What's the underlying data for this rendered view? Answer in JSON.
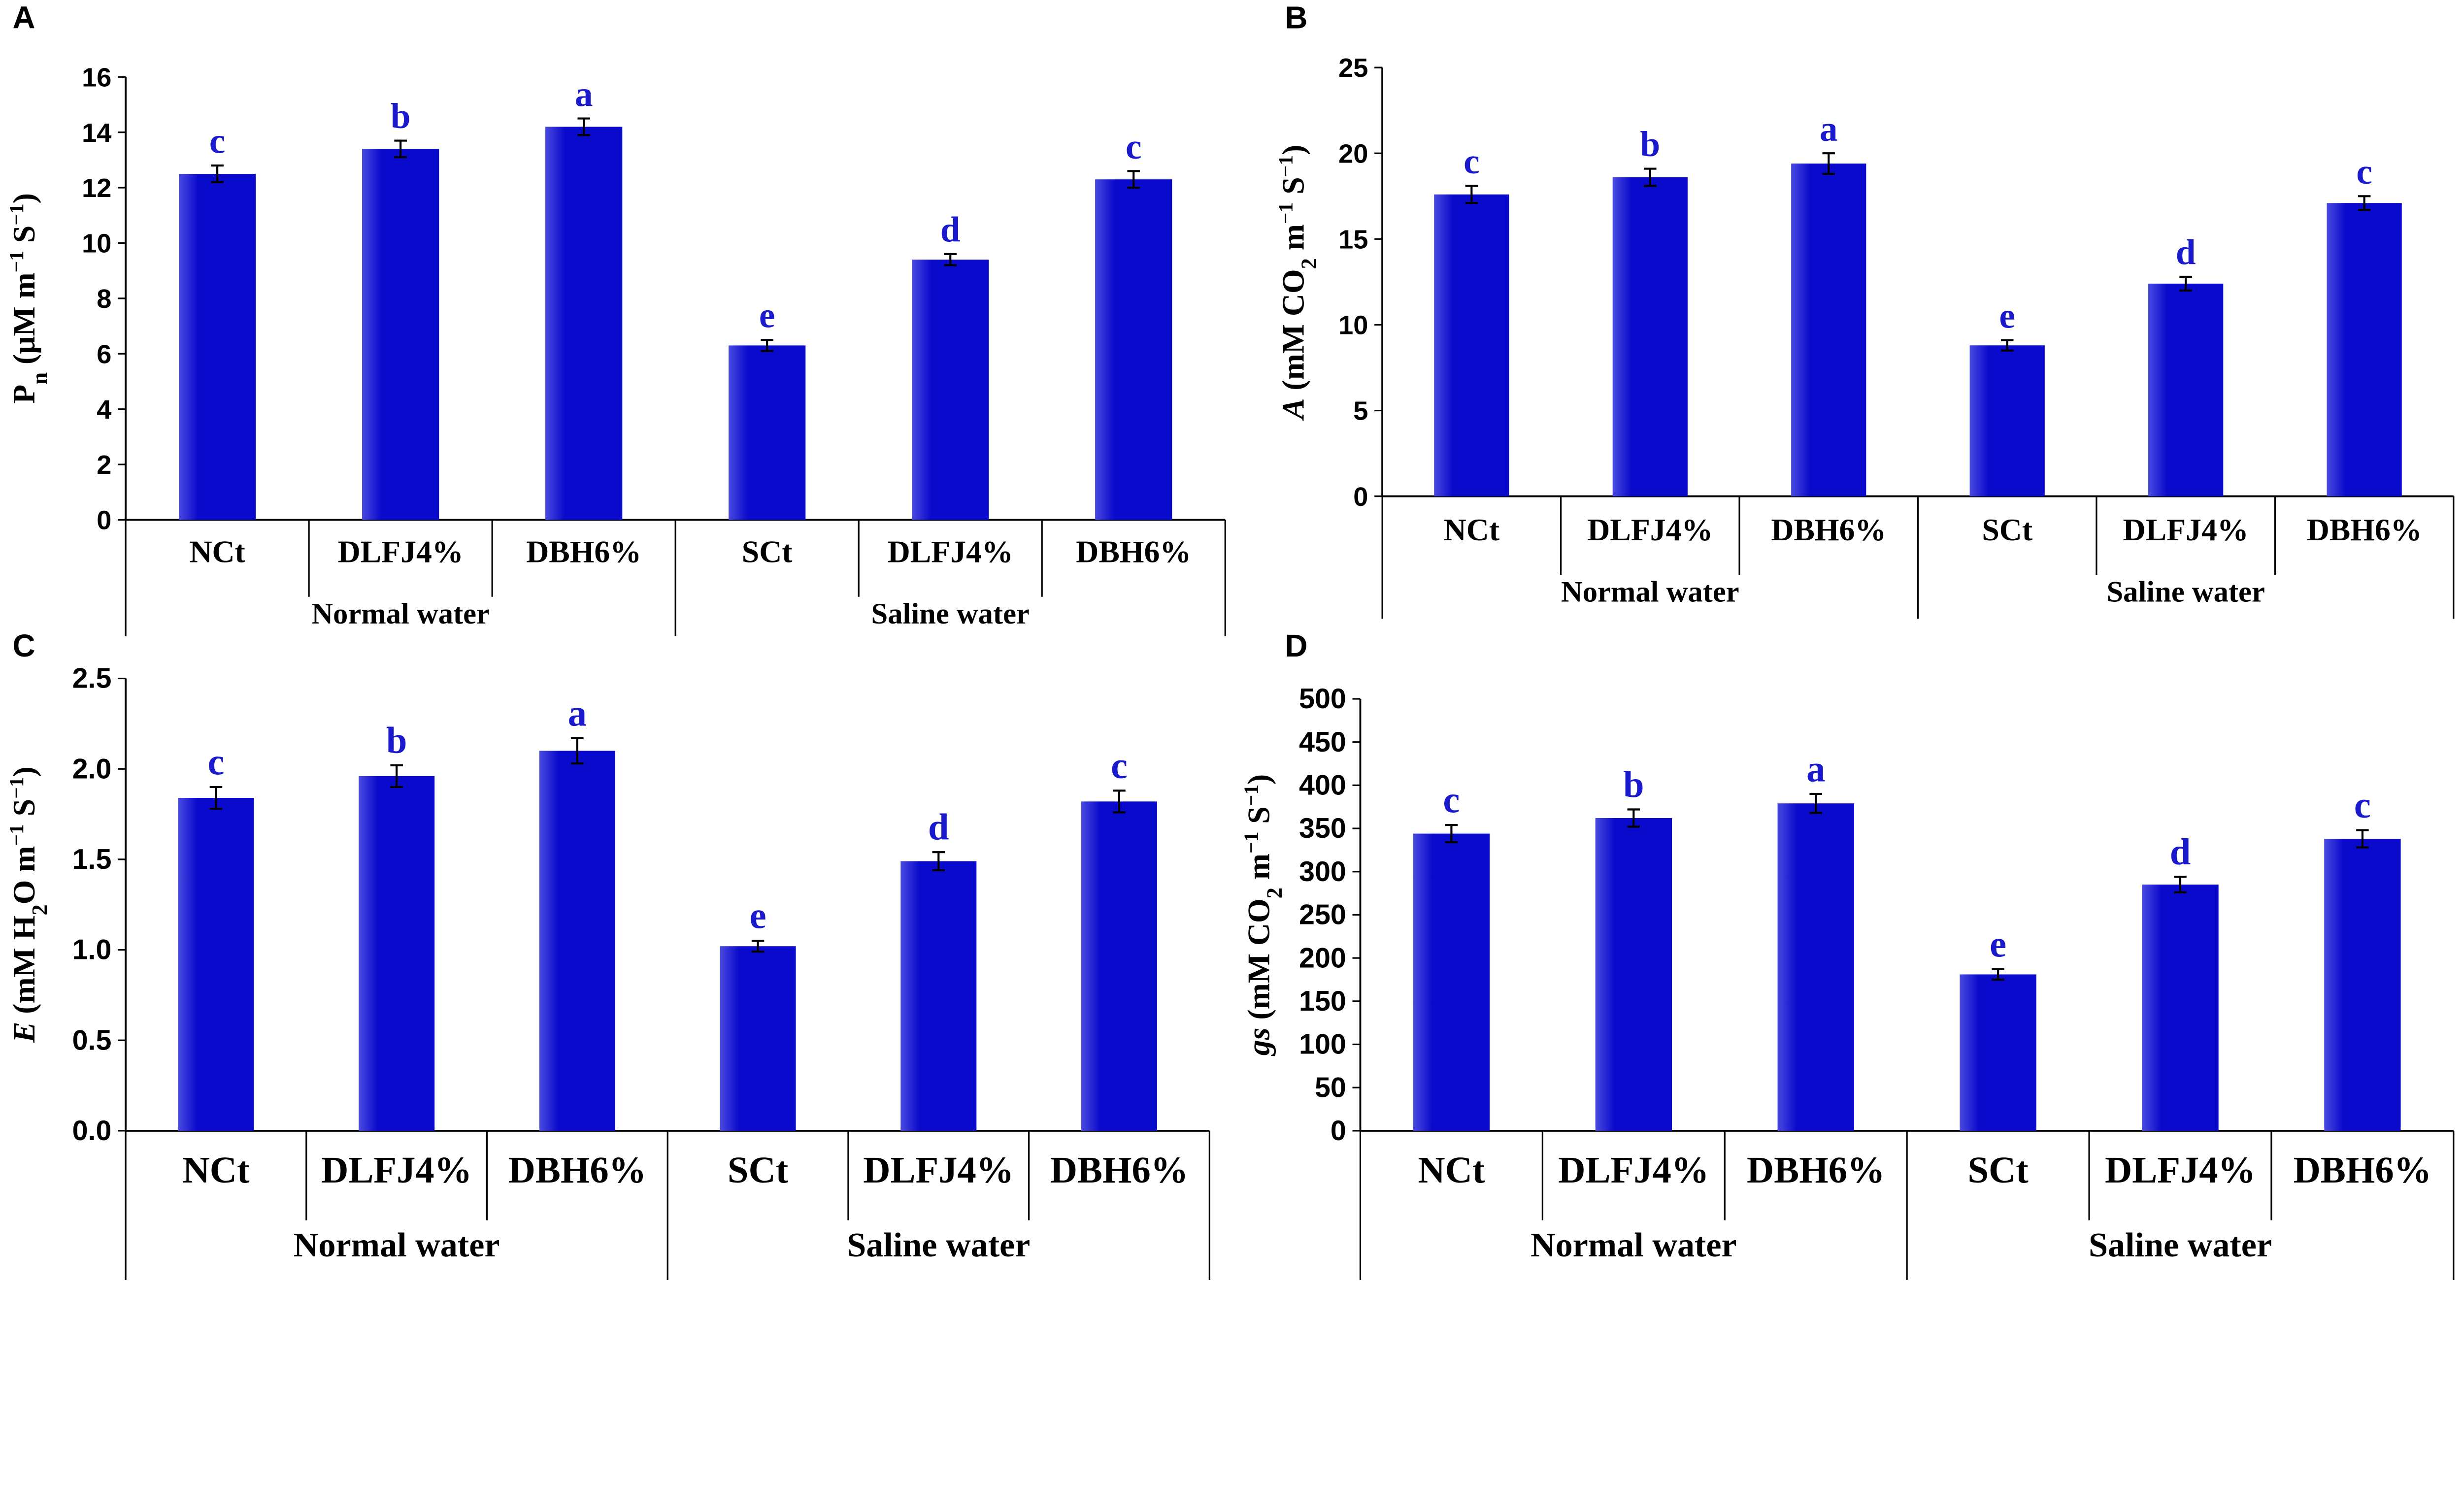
{
  "bar_color": "#0a0acc",
  "letter_color": "#1a1acc",
  "chart_data": [
    {
      "panel": "A",
      "type": "bar",
      "categories": [
        "NCt",
        "DLFJ4%",
        "DBH6%",
        "SCt",
        "DLFJ4%",
        "DBH6%"
      ],
      "groups": [
        "Normal water",
        "Saline water"
      ],
      "values": [
        12.5,
        13.4,
        14.2,
        6.3,
        9.4,
        12.3
      ],
      "errors": [
        0.3,
        0.3,
        0.3,
        0.2,
        0.2,
        0.3
      ],
      "letters": [
        "c",
        "b",
        "a",
        "e",
        "d",
        "c"
      ],
      "ylabel_parts": [
        {
          "t": "P"
        },
        {
          "t": "n",
          "s": "sub"
        },
        {
          "t": " (μM m"
        },
        {
          "t": "−1",
          "s": "sup"
        },
        {
          "t": " S"
        },
        {
          "t": "−1",
          "s": "sup"
        },
        {
          "t": ")"
        }
      ],
      "ylim": [
        0,
        16
      ],
      "yticks": [
        "0",
        "2",
        "4",
        "6",
        "8",
        "10",
        "12",
        "14",
        "16"
      ]
    },
    {
      "panel": "B",
      "type": "bar",
      "categories": [
        "NCt",
        "DLFJ4%",
        "DBH6%",
        "SCt",
        "DLFJ4%",
        "DBH6%"
      ],
      "groups": [
        "Normal water",
        "Saline water"
      ],
      "values": [
        17.6,
        18.6,
        19.4,
        8.8,
        12.4,
        17.1
      ],
      "errors": [
        0.5,
        0.5,
        0.6,
        0.3,
        0.4,
        0.4
      ],
      "letters": [
        "c",
        "b",
        "a",
        "e",
        "d",
        "c"
      ],
      "ylabel_parts": [
        {
          "t": "A",
          "i": true
        },
        {
          "t": " (mM CO"
        },
        {
          "t": "2",
          "s": "sub"
        },
        {
          "t": " m"
        },
        {
          "t": "−1",
          "s": "sup"
        },
        {
          "t": " S"
        },
        {
          "t": "−1",
          "s": "sup"
        },
        {
          "t": ")"
        }
      ],
      "ylim": [
        0,
        25
      ],
      "yticks": [
        "0",
        "5",
        "10",
        "15",
        "20",
        "25"
      ]
    },
    {
      "panel": "C",
      "type": "bar",
      "categories": [
        "NCt",
        "DLFJ4%",
        "DBH6%",
        "SCt",
        "DLFJ4%",
        "DBH6%"
      ],
      "groups": [
        "Normal water",
        "Saline water"
      ],
      "values": [
        1.84,
        1.96,
        2.1,
        1.02,
        1.49,
        1.82
      ],
      "errors": [
        0.06,
        0.06,
        0.07,
        0.03,
        0.05,
        0.06
      ],
      "letters": [
        "c",
        "b",
        "a",
        "e",
        "d",
        "c"
      ],
      "ylabel_parts": [
        {
          "t": "E",
          "i": true
        },
        {
          "t": " (mM H"
        },
        {
          "t": "2",
          "s": "sub"
        },
        {
          "t": "O m"
        },
        {
          "t": "−1",
          "s": "sup"
        },
        {
          "t": " S"
        },
        {
          "t": "−1",
          "s": "sup"
        },
        {
          "t": ")"
        }
      ],
      "ylim": [
        0,
        2.5
      ],
      "yticks": [
        "0.0",
        "0.5",
        "1.0",
        "1.5",
        "2.0",
        "2.5"
      ]
    },
    {
      "panel": "D",
      "type": "bar",
      "categories": [
        "NCt",
        "DLFJ4%",
        "DBH6%",
        "SCt",
        "DLFJ4%",
        "DBH6%"
      ],
      "groups": [
        "Normal water",
        "Saline water"
      ],
      "values": [
        344,
        362,
        379,
        181,
        285,
        338
      ],
      "errors": [
        10,
        10,
        11,
        6,
        9,
        10
      ],
      "letters": [
        "c",
        "b",
        "a",
        "e",
        "d",
        "c"
      ],
      "ylabel_parts": [
        {
          "t": "gs",
          "i": true
        },
        {
          "t": " (mM CO"
        },
        {
          "t": "2",
          "s": "sub"
        },
        {
          "t": " m"
        },
        {
          "t": "−1",
          "s": "sup"
        },
        {
          "t": " S"
        },
        {
          "t": "−1",
          "s": "sup"
        },
        {
          "t": ")"
        }
      ],
      "ylim": [
        0,
        500
      ],
      "yticks": [
        "0",
        "50",
        "100",
        "150",
        "200",
        "250",
        "300",
        "350",
        "400",
        "450",
        "500"
      ]
    }
  ]
}
